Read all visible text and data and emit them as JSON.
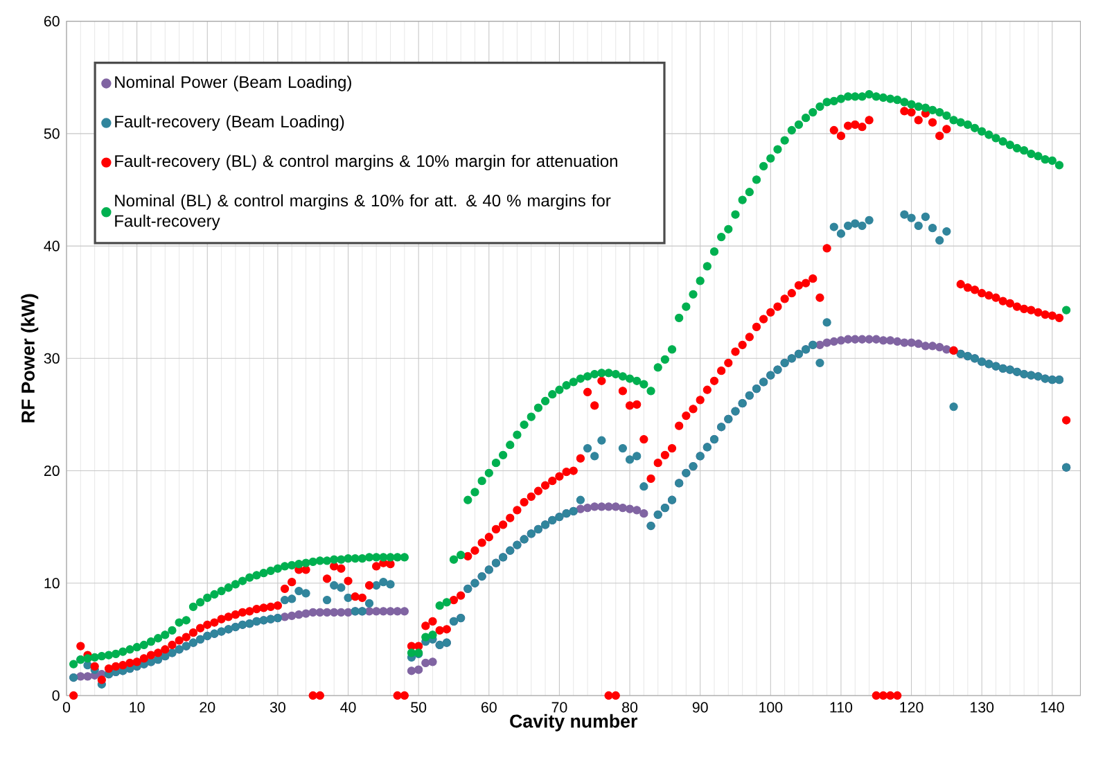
{
  "chart_data": {
    "type": "scatter",
    "xlabel": "Cavity number",
    "ylabel": "RF Power (kW)",
    "x": [
      1,
      2,
      3,
      4,
      5,
      6,
      7,
      8,
      9,
      10,
      11,
      12,
      13,
      14,
      15,
      16,
      17,
      18,
      19,
      20,
      21,
      22,
      23,
      24,
      25,
      26,
      27,
      28,
      29,
      30,
      31,
      32,
      33,
      34,
      35,
      36,
      37,
      38,
      39,
      40,
      41,
      42,
      43,
      44,
      45,
      46,
      47,
      48,
      49,
      50,
      51,
      52,
      53,
      54,
      55,
      56,
      57,
      58,
      59,
      60,
      61,
      62,
      63,
      64,
      65,
      66,
      67,
      68,
      69,
      70,
      71,
      72,
      73,
      74,
      75,
      76,
      77,
      78,
      79,
      80,
      81,
      82,
      83,
      84,
      85,
      86,
      87,
      88,
      89,
      90,
      91,
      92,
      93,
      94,
      95,
      96,
      97,
      98,
      99,
      100,
      101,
      102,
      103,
      104,
      105,
      106,
      107,
      108,
      109,
      110,
      111,
      112,
      113,
      114,
      115,
      116,
      117,
      118,
      119,
      120,
      121,
      122,
      123,
      124,
      125,
      126,
      127,
      128,
      129,
      130,
      131,
      132,
      133,
      134,
      135,
      136,
      137,
      138,
      139,
      140,
      141,
      142
    ],
    "series": [
      {
        "name": "Nominal Power (Beam Loading)",
        "color": "#8064a2",
        "values": [
          1.6,
          1.7,
          1.7,
          1.8,
          1.9,
          1.9,
          2.1,
          2.2,
          2.4,
          2.6,
          2.8,
          3.0,
          3.2,
          3.5,
          3.8,
          4.1,
          4.4,
          4.7,
          5.0,
          5.3,
          5.5,
          5.7,
          5.9,
          6.1,
          6.3,
          6.4,
          6.6,
          6.7,
          6.8,
          6.9,
          7.0,
          7.1,
          7.2,
          7.3,
          7.4,
          7.4,
          7.4,
          7.4,
          7.4,
          7.4,
          7.5,
          7.5,
          7.5,
          7.5,
          7.5,
          7.5,
          7.5,
          7.5,
          2.2,
          2.3,
          2.9,
          3.0,
          4.5,
          4.7,
          6.6,
          6.9,
          9.5,
          10.0,
          10.6,
          11.2,
          11.8,
          12.3,
          12.9,
          13.4,
          13.9,
          14.4,
          14.8,
          15.2,
          15.6,
          15.9,
          16.2,
          16.4,
          16.6,
          16.7,
          16.8,
          16.8,
          16.8,
          16.8,
          16.7,
          16.6,
          16.5,
          16.2,
          15.1,
          16.1,
          16.7,
          17.4,
          18.9,
          19.8,
          20.4,
          21.3,
          22.1,
          22.8,
          23.9,
          24.6,
          25.3,
          26.0,
          26.7,
          27.3,
          27.9,
          28.5,
          29.0,
          29.6,
          30.0,
          30.4,
          30.8,
          31.2,
          31.2,
          31.4,
          31.5,
          31.6,
          31.7,
          31.7,
          31.7,
          31.7,
          31.7,
          31.6,
          31.6,
          31.5,
          31.4,
          31.4,
          31.3,
          31.1,
          31.1,
          31.0,
          30.8,
          30.7,
          30.4,
          30.2,
          30.0,
          29.7,
          29.5,
          29.3,
          29.1,
          29.0,
          28.8,
          28.6,
          28.5,
          28.4,
          28.2,
          28.1,
          28.1,
          20.3
        ]
      },
      {
        "name": "Fault-recovery (Beam Loading)",
        "color": "#31859c",
        "values": [
          1.6,
          3.2,
          2.7,
          2.3,
          1.0,
          1.9,
          2.1,
          2.2,
          2.4,
          2.6,
          2.8,
          3.0,
          3.2,
          3.5,
          3.8,
          4.1,
          4.4,
          4.7,
          5.0,
          5.3,
          5.5,
          5.7,
          5.9,
          6.1,
          6.3,
          6.4,
          6.6,
          6.7,
          6.8,
          6.9,
          8.5,
          8.6,
          9.3,
          9.1,
          null,
          null,
          8.5,
          9.8,
          9.6,
          8.7,
          7.5,
          7.5,
          8.2,
          9.8,
          10.1,
          9.9,
          null,
          null,
          3.4,
          3.7,
          4.8,
          5.0,
          4.5,
          4.7,
          6.6,
          6.9,
          9.5,
          10.0,
          10.6,
          11.2,
          11.8,
          12.3,
          12.9,
          13.4,
          13.9,
          14.4,
          14.8,
          15.2,
          15.6,
          15.9,
          16.2,
          16.4,
          17.4,
          22.0,
          21.3,
          22.7,
          null,
          null,
          22.0,
          21.0,
          21.3,
          18.6,
          15.1,
          16.1,
          16.7,
          17.4,
          18.9,
          19.8,
          20.4,
          21.3,
          22.1,
          22.8,
          23.9,
          24.6,
          25.3,
          26.0,
          26.7,
          27.3,
          27.9,
          28.5,
          29.0,
          29.6,
          30.0,
          30.4,
          30.8,
          31.2,
          29.6,
          33.2,
          41.7,
          41.1,
          41.8,
          42.0,
          41.8,
          42.3,
          null,
          null,
          null,
          null,
          42.8,
          42.5,
          41.8,
          42.6,
          41.6,
          40.5,
          41.3,
          25.7,
          30.4,
          30.2,
          30.0,
          29.7,
          29.5,
          29.3,
          29.1,
          29.0,
          28.8,
          28.6,
          28.5,
          28.4,
          28.2,
          28.1,
          28.1,
          20.3
        ]
      },
      {
        "name": "Fault-recovery (BL) & control margins & 10% margin for attenuation",
        "color": "#ff0000",
        "values": [
          0,
          4.4,
          3.6,
          2.6,
          1.4,
          2.4,
          2.6,
          2.7,
          2.9,
          3.0,
          3.3,
          3.6,
          3.8,
          4.1,
          4.5,
          4.9,
          5.2,
          5.6,
          6.0,
          6.3,
          6.5,
          6.8,
          7.0,
          7.2,
          7.4,
          7.5,
          7.7,
          7.8,
          7.9,
          8.0,
          9.5,
          10.1,
          11.2,
          11.2,
          0,
          0,
          10.4,
          11.5,
          11.3,
          10.2,
          8.8,
          8.7,
          9.8,
          11.5,
          11.8,
          11.7,
          0,
          0,
          4.4,
          4.4,
          6.2,
          6.6,
          5.8,
          5.9,
          8.5,
          8.9,
          12.4,
          12.9,
          13.6,
          14.1,
          14.8,
          15.2,
          15.8,
          16.5,
          17.2,
          17.7,
          18.2,
          18.7,
          19.1,
          19.5,
          19.9,
          20.0,
          21.1,
          27.0,
          25.8,
          28.0,
          0,
          0,
          27.1,
          25.8,
          25.9,
          22.8,
          19.3,
          20.7,
          21.4,
          22.0,
          24.0,
          24.9,
          25.5,
          26.3,
          27.2,
          28.0,
          28.9,
          29.6,
          30.6,
          31.2,
          31.9,
          32.8,
          33.5,
          34.1,
          34.6,
          35.3,
          35.8,
          36.5,
          36.7,
          37.1,
          35.4,
          39.8,
          50.3,
          49.8,
          50.7,
          50.8,
          50.6,
          51.2,
          0,
          0,
          0,
          0,
          52.0,
          51.9,
          51.2,
          51.8,
          51.0,
          49.8,
          50.4,
          30.7,
          36.6,
          36.3,
          36.1,
          35.8,
          35.6,
          35.4,
          35.1,
          34.9,
          34.6,
          34.4,
          34.3,
          34.1,
          33.9,
          33.8,
          33.6,
          24.5
        ]
      },
      {
        "name": "Nominal (BL) & control margins & 10% for att. & 40 % margins for Fault-recovery",
        "color": "#00b050",
        "values": [
          2.8,
          3.2,
          3.3,
          3.4,
          3.5,
          3.6,
          3.7,
          3.9,
          4.1,
          4.3,
          4.5,
          4.8,
          5.1,
          5.4,
          5.8,
          6.5,
          6.7,
          7.9,
          8.3,
          8.7,
          9.0,
          9.3,
          9.6,
          9.9,
          10.2,
          10.5,
          10.7,
          10.9,
          11.1,
          11.3,
          11.5,
          11.6,
          11.7,
          11.8,
          11.9,
          12.0,
          12.0,
          12.1,
          12.1,
          12.2,
          12.2,
          12.2,
          12.3,
          12.3,
          12.3,
          12.3,
          12.3,
          12.3,
          3.8,
          3.8,
          5.2,
          5.4,
          8.0,
          8.3,
          12.1,
          12.5,
          17.4,
          18.1,
          19.1,
          19.8,
          20.7,
          21.4,
          22.3,
          23.2,
          24.1,
          24.8,
          25.6,
          26.2,
          26.8,
          27.2,
          27.6,
          27.9,
          28.2,
          28.4,
          28.6,
          28.7,
          28.7,
          28.6,
          28.4,
          28.2,
          28.0,
          27.7,
          27.1,
          29.2,
          29.9,
          30.8,
          33.6,
          34.6,
          35.7,
          36.9,
          38.2,
          39.5,
          40.8,
          41.5,
          42.8,
          44.1,
          44.8,
          45.9,
          47.1,
          47.8,
          48.6,
          49.4,
          50.3,
          50.8,
          51.4,
          51.9,
          52.4,
          52.8,
          52.9,
          53.1,
          53.3,
          53.3,
          53.3,
          53.5,
          53.3,
          53.2,
          53.1,
          53.0,
          52.8,
          52.6,
          52.4,
          52.3,
          52.1,
          51.9,
          51.6,
          51.2,
          51.0,
          50.8,
          50.5,
          50.2,
          49.9,
          49.6,
          49.3,
          49.0,
          48.7,
          48.5,
          48.2,
          48.0,
          47.7,
          47.6,
          47.2,
          34.3
        ]
      }
    ],
    "xlim": [
      0,
      144
    ],
    "ylim": [
      0,
      60
    ],
    "xticks": [
      0,
      10,
      20,
      30,
      40,
      50,
      60,
      70,
      80,
      90,
      100,
      110,
      120,
      130,
      140
    ],
    "yticks": [
      0,
      10,
      20,
      30,
      40,
      50,
      60
    ],
    "grid": true,
    "legend": "top left",
    "marker": "circle"
  }
}
